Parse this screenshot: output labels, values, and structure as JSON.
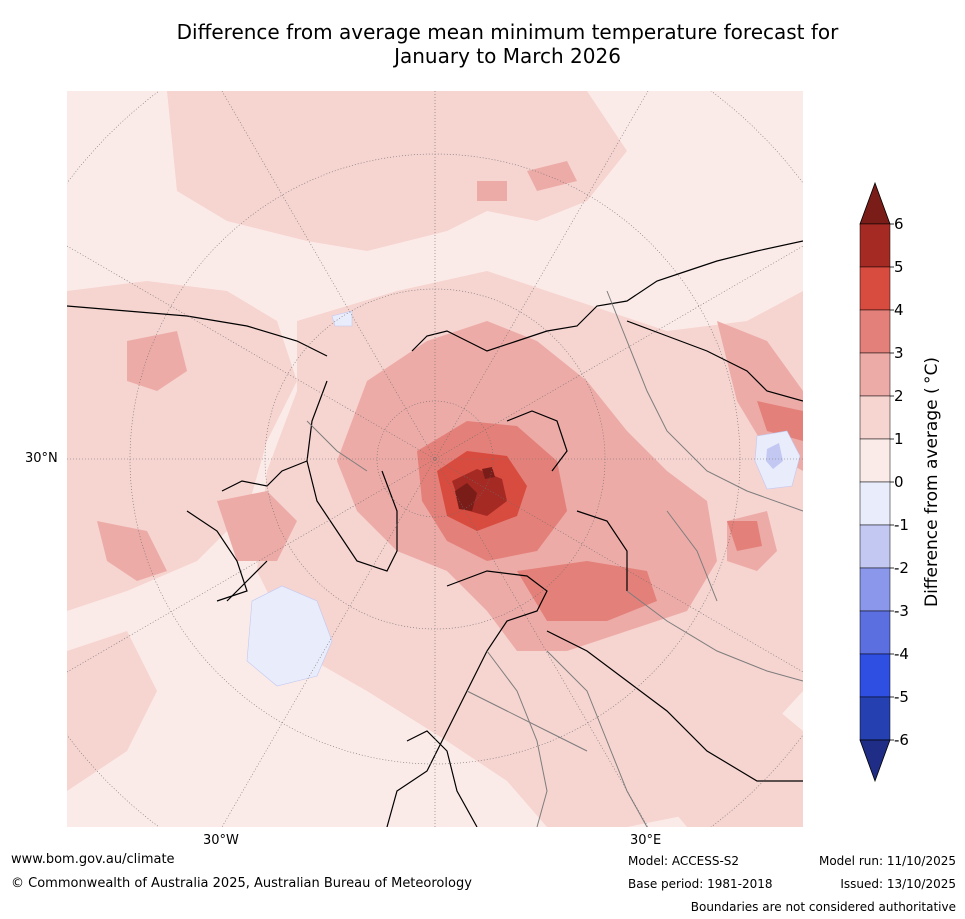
{
  "title": {
    "line1": "Difference from average mean minimum temperature forecast for",
    "line2": "January to March 2026"
  },
  "map": {
    "projection": "north-polar-stereographic",
    "axis_labels": {
      "lat_left": "30°N",
      "lon_bottom_left": "30°W",
      "lon_bottom_right": "30°E"
    }
  },
  "colorbar": {
    "label": "Difference from average ( °C)",
    "ticks": [
      "6",
      "5",
      "4",
      "3",
      "2",
      "1",
      "0",
      "-1",
      "-2",
      "-3",
      "-4",
      "-5",
      "-6"
    ],
    "colors": [
      "#a52a24",
      "#d84b3f",
      "#e4807a",
      "#edaba7",
      "#f6d4d0",
      "#fbebe8",
      "#e9ecfb",
      "#c2c8f2",
      "#8a97ea",
      "#5b6fe0",
      "#2f4fe2",
      "#2540b0"
    ],
    "extend_top_color": "#7a1c18",
    "extend_bottom_color": "#1f2d86"
  },
  "footer": {
    "website": "www.bom.gov.au/climate",
    "copyright": "© Commonwealth of Australia 2025, Australian Bureau of Meteorology",
    "model": "Model: ACCESS-S2",
    "base_period": "Base period: 1981-2018",
    "model_run": "Model run: 11/10/2025",
    "issued": "Issued: 13/10/2025",
    "boundaries": "Boundaries are not considered authoritative"
  }
}
